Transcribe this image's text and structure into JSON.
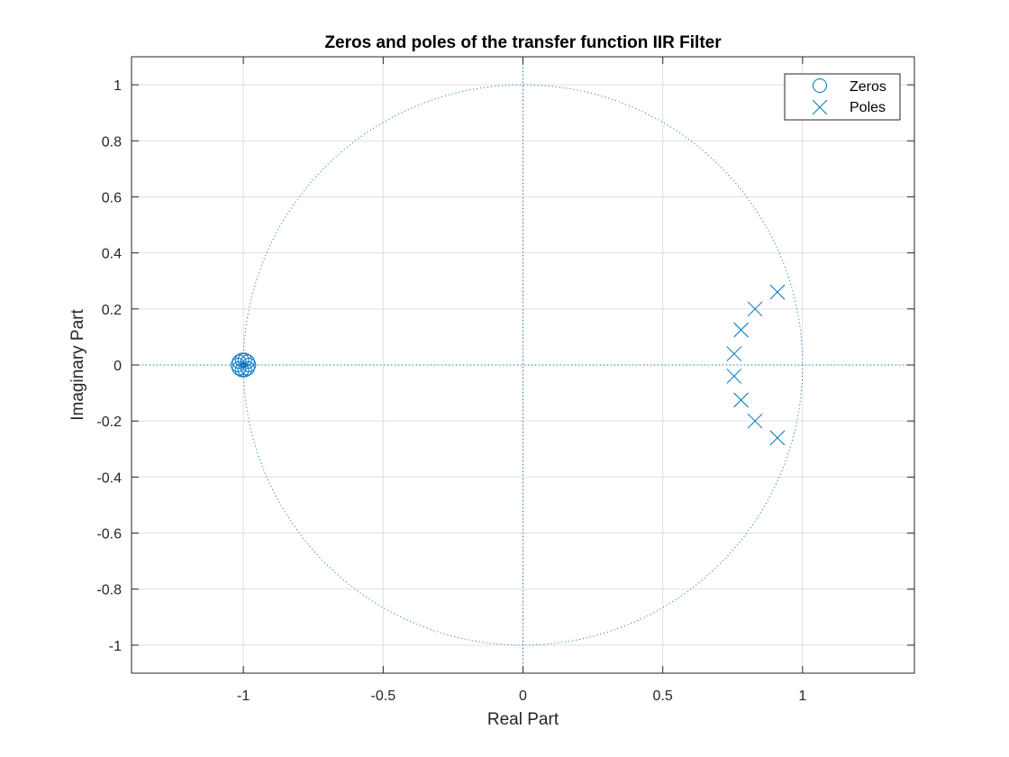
{
  "chart_data": {
    "type": "scatter",
    "title": "Zeros and poles of the transfer function IIR Filter",
    "xlabel": "Real Part",
    "ylabel": "Imaginary Part",
    "xlim": [
      -1.4,
      1.4
    ],
    "ylim": [
      -1.1,
      1.1
    ],
    "xticks": [
      -1,
      -0.5,
      0,
      0.5,
      1
    ],
    "xtick_labels": [
      "-1",
      "-0.5",
      "0",
      "0.5",
      "1"
    ],
    "yticks": [
      -1,
      -0.8,
      -0.6,
      -0.4,
      -0.2,
      0,
      0.2,
      0.4,
      0.6,
      0.8,
      1
    ],
    "ytick_labels": [
      "-1",
      "-0.8",
      "-0.6",
      "-0.4",
      "-0.2",
      "0",
      "0.2",
      "0.4",
      "0.6",
      "0.8",
      "1"
    ],
    "grid": true,
    "unit_circle": true,
    "legend_position": "top-right",
    "color": "#0072BD",
    "series": [
      {
        "name": "Zeros",
        "marker": "circle",
        "points": [
          [
            -0.98,
            0.0
          ],
          [
            -0.985,
            0.012
          ],
          [
            -0.995,
            0.018
          ],
          [
            -1.005,
            0.018
          ],
          [
            -1.015,
            0.012
          ],
          [
            -1.02,
            0.0
          ],
          [
            -1.015,
            -0.012
          ],
          [
            -1.005,
            -0.018
          ],
          [
            -0.995,
            -0.018
          ],
          [
            -0.985,
            -0.012
          ]
        ]
      },
      {
        "name": "Poles",
        "marker": "cross",
        "points": [
          [
            0.91,
            0.26
          ],
          [
            0.83,
            0.2
          ],
          [
            0.78,
            0.125
          ],
          [
            0.755,
            0.04
          ],
          [
            0.755,
            -0.04
          ],
          [
            0.78,
            -0.125
          ],
          [
            0.83,
            -0.2
          ],
          [
            0.91,
            -0.26
          ]
        ]
      }
    ]
  }
}
